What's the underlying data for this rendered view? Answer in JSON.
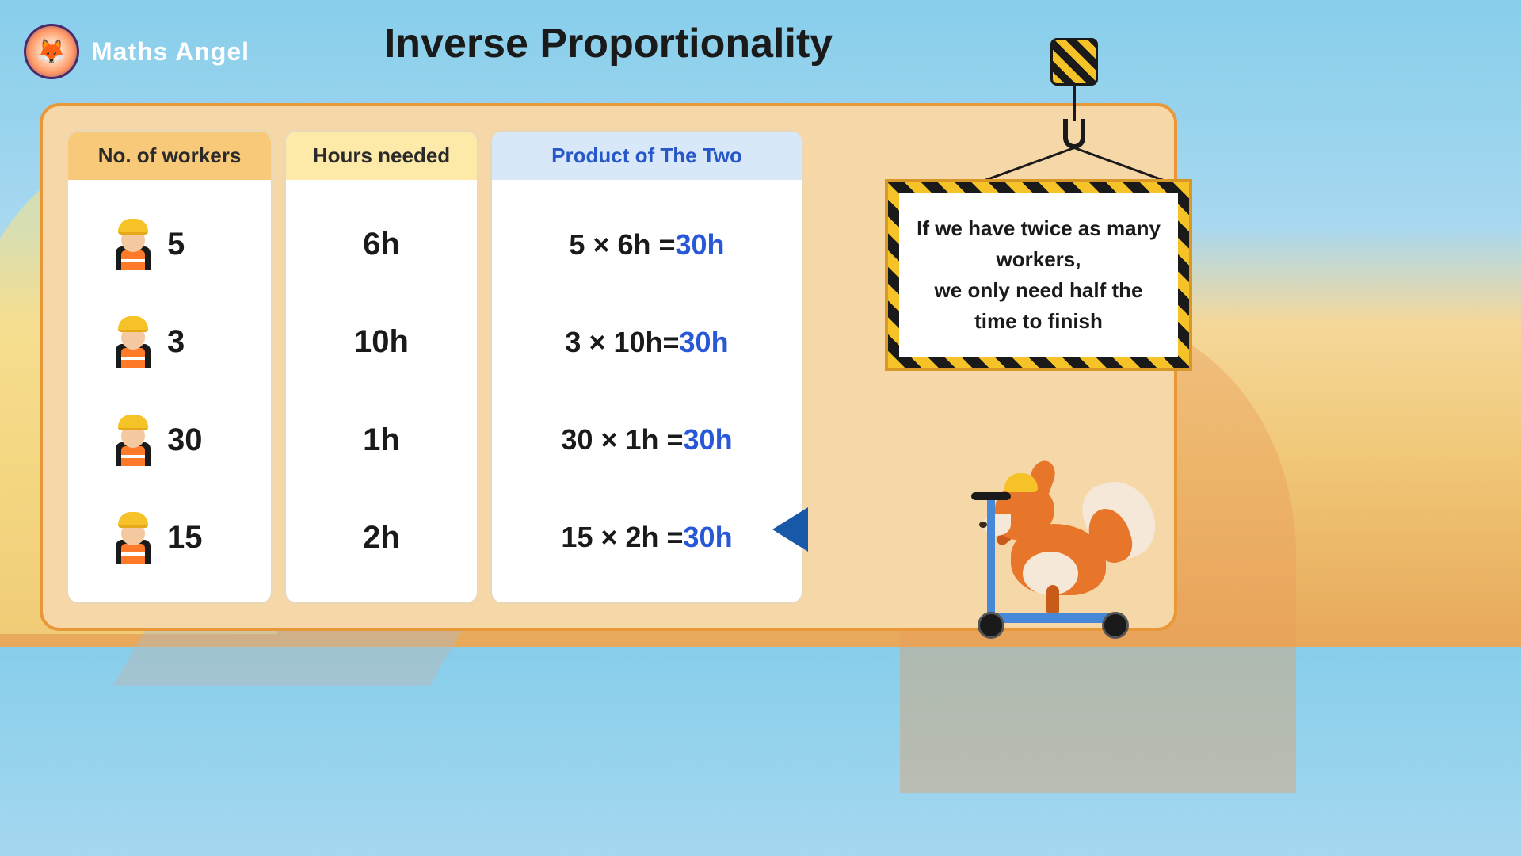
{
  "brand": "Maths Angel",
  "title": "Inverse Proportionality",
  "columns": {
    "workers_header": "No. of workers",
    "hours_header": "Hours needed",
    "product_header": "Product of The Two"
  },
  "rows": [
    {
      "workers": "5",
      "hours": "6h",
      "product_lhs": "5 × 6h = ",
      "product_rhs": "30h"
    },
    {
      "workers": "3",
      "hours": "10h",
      "product_lhs": "3 × 10h= ",
      "product_rhs": "30h"
    },
    {
      "workers": "30",
      "hours": "1h",
      "product_lhs": "30 × 1h = ",
      "product_rhs": "30h"
    },
    {
      "workers": "15",
      "hours": "2h",
      "product_lhs": "15 × 2h = ",
      "product_rhs": "30h"
    }
  ],
  "sign_text": "If we have twice as many workers,\nwe only need half the time to finish",
  "colors": {
    "header_orange": "#f8c978",
    "header_yellow": "#fde9a8",
    "header_blue": "#d8e8f8",
    "product_result": "#2858d8",
    "panel_bg": "#f5d7a8",
    "panel_border": "#e89838",
    "fox_orange": "#e8762a",
    "scooter_blue": "#4888d8",
    "hazard_yellow": "#f5c328"
  },
  "fonts": {
    "title_size": 52,
    "header_size": 26,
    "row_size": 40,
    "product_size": 36,
    "sign_size": 26
  }
}
